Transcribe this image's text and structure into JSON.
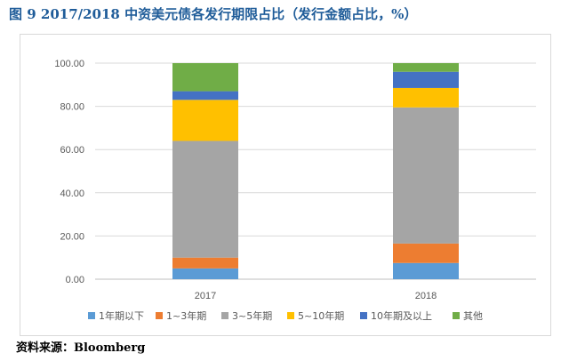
{
  "title": "图 9 2017/2018 中资美元债各发行期限占比（发行金额占比，%）",
  "source": "资料来源：Bloomberg",
  "chart_data": {
    "type": "bar",
    "stacked": true,
    "categories": [
      "2017",
      "2018"
    ],
    "series": [
      {
        "name": "1年期以下",
        "color": "#5b9bd5",
        "values": [
          5,
          7.5
        ]
      },
      {
        "name": "1~3年期",
        "color": "#ed7d31",
        "values": [
          5,
          9
        ]
      },
      {
        "name": "3~5年期",
        "color": "#a5a5a5",
        "values": [
          54,
          63
        ]
      },
      {
        "name": "5~10年期",
        "color": "#ffc000",
        "values": [
          19,
          9
        ]
      },
      {
        "name": "10年期及以上",
        "color": "#4472c4",
        "values": [
          4,
          7.5
        ]
      },
      {
        "name": "其他",
        "color": "#70ad47",
        "values": [
          13,
          4
        ]
      }
    ],
    "yticks": [
      "0.00",
      "20.00",
      "40.00",
      "60.00",
      "80.00",
      "100.00"
    ],
    "ylim": [
      0,
      100
    ],
    "grid": true,
    "legend": "bottom"
  }
}
